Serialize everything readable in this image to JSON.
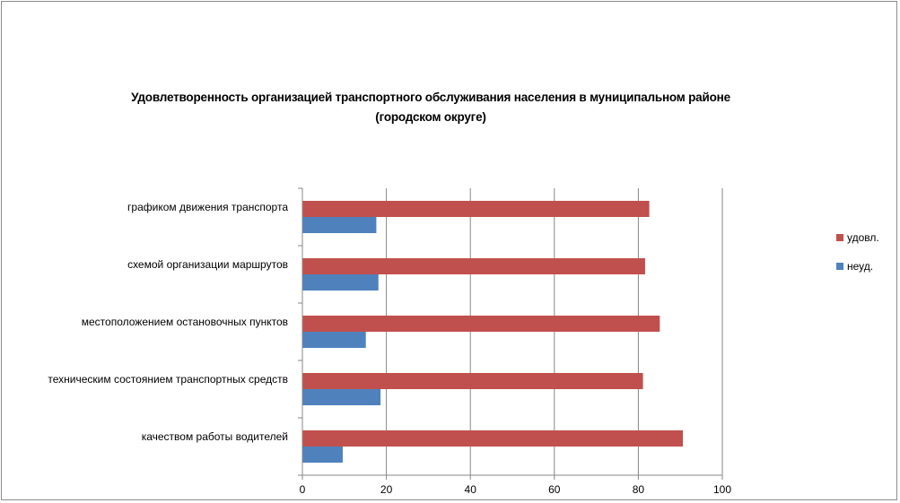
{
  "chart_data": {
    "type": "bar",
    "orientation": "horizontal",
    "title": "Удовлетворенность организацией транспортного обслуживания населения в муниципальном районе (городском округе)",
    "title_lines": [
      "Удовлетворенность организацией транспортного обслуживания населения в муниципальном районе",
      "(городском округе)"
    ],
    "categories": [
      "графиком движения транспорта",
      "схемой организации маршрутов",
      "местоположением остановочных пунктов",
      "техническим состоянием транспортных средств",
      "качеством работы водителей"
    ],
    "series": [
      {
        "name": "удовл.",
        "color": "#c0504d",
        "values": [
          82.5,
          81.5,
          85,
          81,
          90.5
        ]
      },
      {
        "name": "неуд.",
        "color": "#4f81bd",
        "values": [
          17.5,
          18,
          15,
          18.5,
          9.5
        ]
      }
    ],
    "xlim": [
      0,
      100
    ],
    "xticks": [
      "0",
      "20",
      "40",
      "60",
      "80",
      "100"
    ],
    "grid": true,
    "legend_position": "right"
  }
}
